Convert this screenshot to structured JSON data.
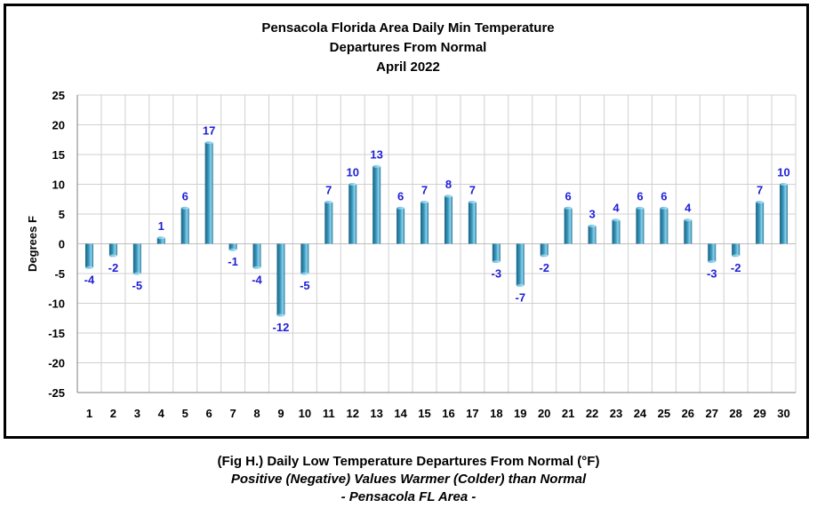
{
  "chart_data": {
    "type": "bar",
    "title_lines": [
      "Pensacola Florida Area Daily Min Temperature",
      "Departures From Normal",
      "April 2022"
    ],
    "ylabel": "Degrees F",
    "xlabel": "",
    "ylim": [
      -25,
      25
    ],
    "yticks": [
      25,
      20,
      15,
      10,
      5,
      0,
      -5,
      -10,
      -15,
      -20,
      -25
    ],
    "categories": [
      "1",
      "2",
      "3",
      "4",
      "5",
      "6",
      "7",
      "8",
      "9",
      "10",
      "11",
      "12",
      "13",
      "14",
      "15",
      "16",
      "17",
      "18",
      "19",
      "20",
      "21",
      "22",
      "23",
      "24",
      "25",
      "26",
      "27",
      "28",
      "29",
      "30"
    ],
    "values": [
      -4,
      -2,
      -5,
      1,
      6,
      17,
      -1,
      -4,
      -12,
      -5,
      7,
      10,
      13,
      6,
      7,
      8,
      7,
      -3,
      -7,
      -2,
      6,
      3,
      4,
      6,
      6,
      4,
      -3,
      -2,
      7,
      10
    ],
    "grid": true,
    "legend": "none",
    "bar_color": "#3a9cc2",
    "label_color": "#1f1fd6"
  },
  "caption": {
    "line1": "(Fig H.) Daily Low Temperature Departures From Normal (°F)",
    "line2": "Positive (Negative) Values Warmer (Colder) than Normal",
    "line3": "- Pensacola FL Area -"
  }
}
